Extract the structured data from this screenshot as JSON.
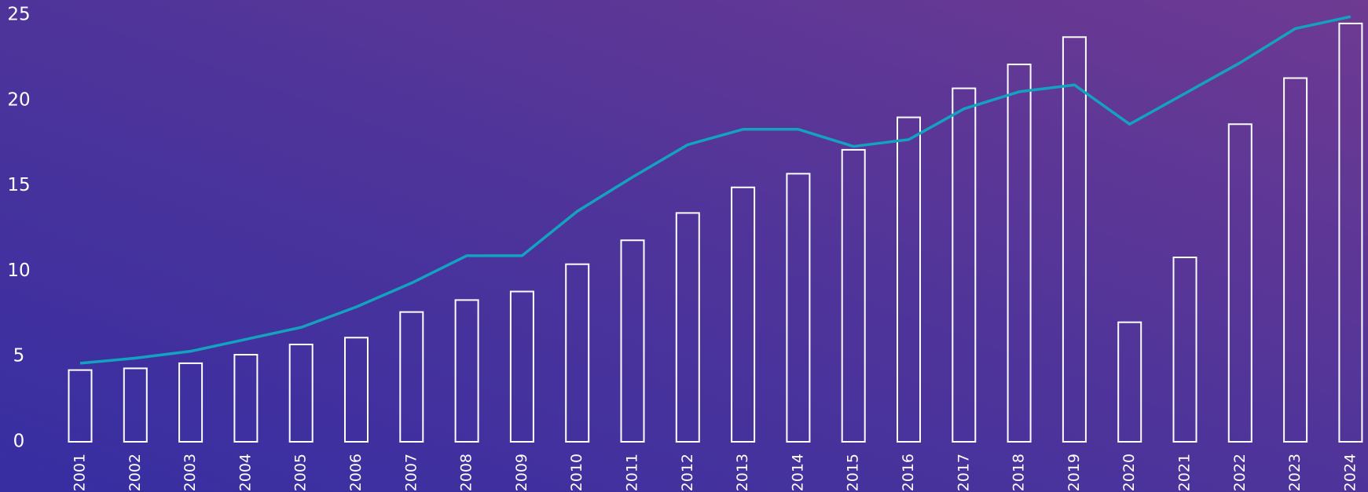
{
  "chart_data": {
    "type": "bar",
    "categories": [
      "2001",
      "2002",
      "2003",
      "2004",
      "2005",
      "2006",
      "2007",
      "2008",
      "2009",
      "2010",
      "2011",
      "2012",
      "2013",
      "2014",
      "2015",
      "2016",
      "2017",
      "2018",
      "2019",
      "2020",
      "2021",
      "2022",
      "2023",
      "2024"
    ],
    "series": [
      {
        "type": "bar",
        "color": "#ffffff",
        "values": [
          4.2,
          4.3,
          4.6,
          5.1,
          5.7,
          6.1,
          7.6,
          8.3,
          8.8,
          10.4,
          11.8,
          13.4,
          14.9,
          15.7,
          17.1,
          19.0,
          20.7,
          22.1,
          23.7,
          7.0,
          10.8,
          18.6,
          21.3,
          24.5
        ]
      },
      {
        "type": "line",
        "color": "#13a3c0",
        "values": [
          4.6,
          4.9,
          5.3,
          6.0,
          6.7,
          7.9,
          9.3,
          10.9,
          10.9,
          13.5,
          15.5,
          17.4,
          18.3,
          18.3,
          17.3,
          17.7,
          19.5,
          20.5,
          20.9,
          18.6,
          20.4,
          22.2,
          24.2,
          24.9
        ]
      }
    ],
    "ylim": [
      0,
      25
    ],
    "yticks": [
      0,
      5,
      10,
      15,
      20,
      25
    ],
    "grid": false
  }
}
